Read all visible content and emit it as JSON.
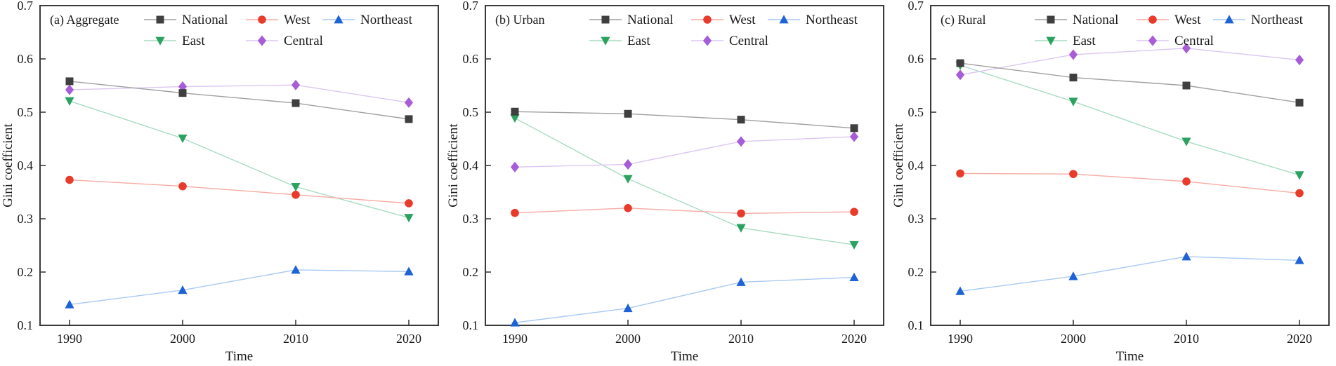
{
  "figure": {
    "ylabel": "Gini coefficient",
    "xlabel": "Time",
    "text_color": "#1a1a1a",
    "frame_color": "#3a3a3a",
    "background": "#ffffff"
  },
  "series_styles": {
    "National": {
      "marker": "square",
      "marker_color": "#3f3f3f",
      "line_color": "#a0a0a0"
    },
    "West": {
      "marker": "circle",
      "marker_color": "#e93b2c",
      "line_color": "#f6aba4"
    },
    "Northeast": {
      "marker": "triangle-up",
      "marker_color": "#1d63d5",
      "line_color": "#a9c9f2"
    },
    "East": {
      "marker": "triangle-down",
      "marker_color": "#2ca261",
      "line_color": "#a9dcc2"
    },
    "Central": {
      "marker": "diamond",
      "marker_color": "#a75dd7",
      "line_color": "#dcc6f2"
    }
  },
  "chart_data": [
    {
      "type": "line",
      "panel_label": "(a) Aggregate",
      "xlabel": "Time",
      "ylabel": "Gini coefficient",
      "ylim": [
        0.1,
        0.7
      ],
      "yticks": [
        0.1,
        0.2,
        0.3,
        0.4,
        0.5,
        0.6,
        0.7
      ],
      "x_categories": [
        "1990",
        "2000",
        "2010",
        "2020"
      ],
      "legend_rows": [
        [
          "National",
          "West",
          "Northeast"
        ],
        [
          "East",
          "Central"
        ]
      ],
      "series": [
        {
          "name": "National",
          "values": [
            0.558,
            0.536,
            0.517,
            0.487
          ]
        },
        {
          "name": "West",
          "values": [
            0.373,
            0.361,
            0.345,
            0.329
          ]
        },
        {
          "name": "Northeast",
          "values": [
            0.139,
            0.166,
            0.204,
            0.201
          ]
        },
        {
          "name": "East",
          "values": [
            0.521,
            0.451,
            0.36,
            0.302
          ]
        },
        {
          "name": "Central",
          "values": [
            0.542,
            0.548,
            0.551,
            0.518
          ]
        }
      ]
    },
    {
      "type": "line",
      "panel_label": "(b) Urban",
      "xlabel": "Time",
      "ylabel": "Gini coefficient",
      "ylim": [
        0.1,
        0.7
      ],
      "yticks": [
        0.1,
        0.2,
        0.3,
        0.4,
        0.5,
        0.6,
        0.7
      ],
      "x_categories": [
        "1990",
        "2000",
        "2010",
        "2020"
      ],
      "legend_rows": [
        [
          "National",
          "West",
          "Northeast"
        ],
        [
          "East",
          "Central"
        ]
      ],
      "series": [
        {
          "name": "National",
          "values": [
            0.501,
            0.497,
            0.486,
            0.47
          ]
        },
        {
          "name": "West",
          "values": [
            0.311,
            0.32,
            0.31,
            0.313
          ]
        },
        {
          "name": "Northeast",
          "values": [
            0.105,
            0.132,
            0.181,
            0.19
          ]
        },
        {
          "name": "East",
          "values": [
            0.489,
            0.375,
            0.283,
            0.251
          ]
        },
        {
          "name": "Central",
          "values": [
            0.397,
            0.402,
            0.445,
            0.454
          ]
        }
      ]
    },
    {
      "type": "line",
      "panel_label": "(c) Rural",
      "xlabel": "Time",
      "ylabel": "Gini coefficient",
      "ylim": [
        0.1,
        0.7
      ],
      "yticks": [
        0.1,
        0.2,
        0.3,
        0.4,
        0.5,
        0.6,
        0.7
      ],
      "x_categories": [
        "1990",
        "2000",
        "2010",
        "2020"
      ],
      "legend_rows": [
        [
          "National",
          "West",
          "Northeast"
        ],
        [
          "East",
          "Central"
        ]
      ],
      "series": [
        {
          "name": "National",
          "values": [
            0.592,
            0.565,
            0.55,
            0.518
          ]
        },
        {
          "name": "West",
          "values": [
            0.385,
            0.384,
            0.37,
            0.348
          ]
        },
        {
          "name": "Northeast",
          "values": [
            0.164,
            0.192,
            0.229,
            0.222
          ]
        },
        {
          "name": "East",
          "values": [
            0.588,
            0.52,
            0.445,
            0.382
          ]
        },
        {
          "name": "Central",
          "values": [
            0.57,
            0.608,
            0.62,
            0.598
          ]
        }
      ]
    }
  ]
}
